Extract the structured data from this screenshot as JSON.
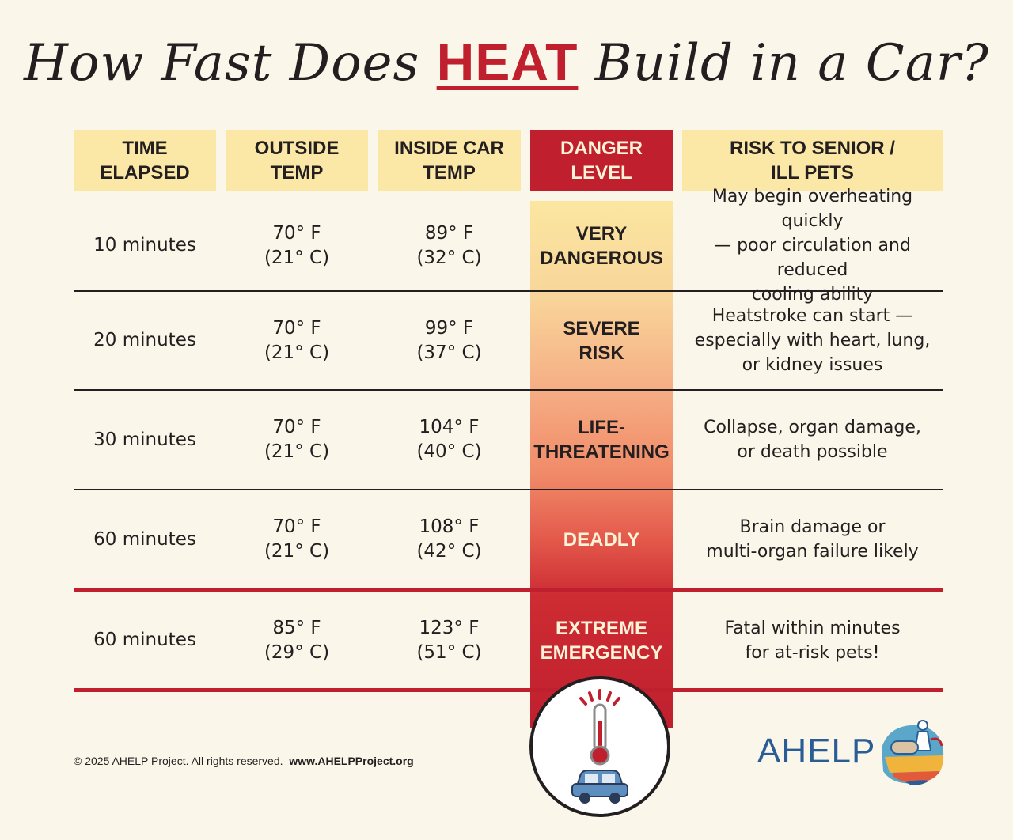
{
  "title": {
    "before": "How Fast Does ",
    "highlight": "HEAT",
    "after": " Build in a Car?"
  },
  "headers": [
    "TIME\nELAPSED",
    "OUTSIDE\nTEMP",
    "INSIDE CAR\nTEMP",
    "DANGER\nLEVEL",
    "RISK TO SENIOR /\nILL PETS"
  ],
  "rows": [
    {
      "time": "10 minutes",
      "outside": "70° F\n(21° C)",
      "inside": "89° F\n(32° C)",
      "danger": "VERY\nDANGEROUS",
      "risk": "May begin overheating quickly\n— poor circulation and reduced\ncooling ability"
    },
    {
      "time": "20 minutes",
      "outside": "70° F\n(21° C)",
      "inside": "99° F\n(37° C)",
      "danger": "SEVERE\nRISK",
      "risk": "Heatstroke can start —\nespecially with heart, lung,\nor kidney issues"
    },
    {
      "time": "30 minutes",
      "outside": "70° F\n(21° C)",
      "inside": "104° F\n(40° C)",
      "danger": "LIFE-\nTHREATENING",
      "risk": "Collapse, organ damage,\nor death possible"
    },
    {
      "time": "60 minutes",
      "outside": "70° F\n(21° C)",
      "inside": "108° F\n(42° C)",
      "danger": "DEADLY",
      "risk": "Brain damage or\nmulti-organ failure likely"
    },
    {
      "time": "60 minutes",
      "outside": "85° F\n(29° C)",
      "inside": "123° F\n(51° C)",
      "danger": "EXTREME\nEMERGENCY",
      "risk": "Fatal within minutes\nfor at-risk pets!"
    }
  ],
  "footer": {
    "copyright": "© 2025 AHELP Project. All rights reserved.",
    "website": "www.AHELPProject.org"
  },
  "logo": {
    "text": "AHELP"
  },
  "icons": {
    "badge": "thermometer-car-icon",
    "logo_mark": "ahelp-logo-mark"
  },
  "colors": {
    "accent_red": "#c0202e",
    "header_yellow": "#fbe8a6",
    "background": "#faf6e9",
    "logo_blue": "#2a5d95"
  }
}
